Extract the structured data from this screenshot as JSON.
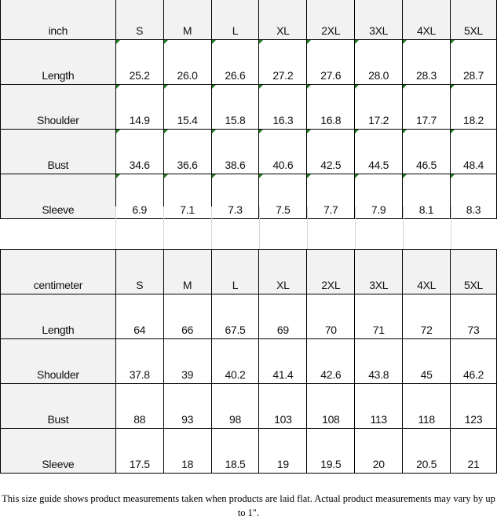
{
  "inch": {
    "unit": "inch",
    "sizes": [
      "S",
      "M",
      "L",
      "XL",
      "2XL",
      "3XL",
      "4XL",
      "5XL"
    ],
    "rows": [
      {
        "label": "Length",
        "values": [
          "25.2",
          "26.0",
          "26.6",
          "27.2",
          "27.6",
          "28.0",
          "28.3",
          "28.7"
        ]
      },
      {
        "label": "Shoulder",
        "values": [
          "14.9",
          "15.4",
          "15.8",
          "16.3",
          "16.8",
          "17.2",
          "17.7",
          "18.2"
        ]
      },
      {
        "label": "Bust",
        "values": [
          "34.6",
          "36.6",
          "38.6",
          "40.6",
          "42.5",
          "44.5",
          "46.5",
          "48.4"
        ]
      },
      {
        "label": "Sleeve",
        "values": [
          "6.9",
          "7.1",
          "7.3",
          "7.5",
          "7.7",
          "7.9",
          "8.1",
          "8.3"
        ]
      }
    ]
  },
  "cm": {
    "unit": "centimeter",
    "sizes": [
      "S",
      "M",
      "L",
      "XL",
      "2XL",
      "3XL",
      "4XL",
      "5XL"
    ],
    "rows": [
      {
        "label": "Length",
        "values": [
          "64",
          "66",
          "67.5",
          "69",
          "70",
          "71",
          "72",
          "73"
        ]
      },
      {
        "label": "Shoulder",
        "values": [
          "37.8",
          "39",
          "40.2",
          "41.4",
          "42.6",
          "43.8",
          "45",
          "46.2"
        ]
      },
      {
        "label": "Bust",
        "values": [
          "88",
          "93",
          "98",
          "103",
          "108",
          "113",
          "118",
          "123"
        ]
      },
      {
        "label": "Sleeve",
        "values": [
          "17.5",
          "18",
          "18.5",
          "19",
          "19.5",
          "20",
          "20.5",
          "21"
        ]
      }
    ]
  },
  "note": "This size guide shows product measurements taken when products are laid flat. Actual product measurements may vary by up to 1\"."
}
